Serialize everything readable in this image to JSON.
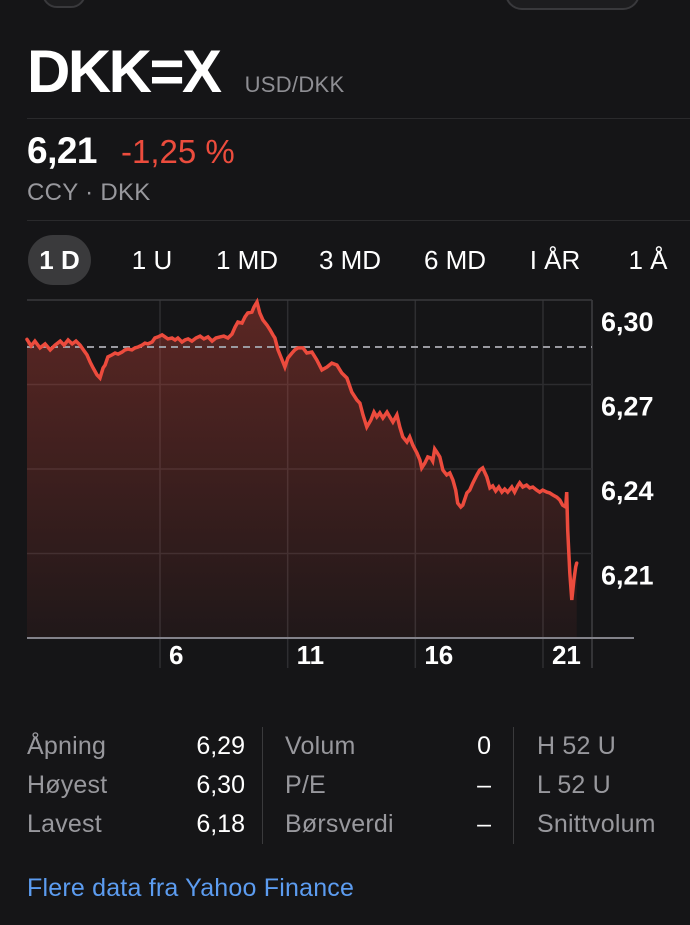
{
  "title": {
    "symbol": "DKK=X",
    "pair": "USD/DKK"
  },
  "quote": {
    "price": "6,21",
    "change_pct": "-1,25 %",
    "meta": "CCY · DKK"
  },
  "tabs": {
    "items": [
      {
        "label": "1 D",
        "selected": true
      },
      {
        "label": "1 U"
      },
      {
        "label": "1 MD"
      },
      {
        "label": "3 MD"
      },
      {
        "label": "6 MD"
      },
      {
        "label": "I ÅR"
      },
      {
        "label": "1 Å"
      }
    ]
  },
  "chart_data": {
    "type": "area",
    "title": "USD/DKK intraday (1 D)",
    "legend": "none",
    "grid": true,
    "x_ticks": [
      {
        "t": 6,
        "label": "6"
      },
      {
        "t": 11,
        "label": "11"
      },
      {
        "t": 16,
        "label": "16"
      },
      {
        "t": 21,
        "label": "21"
      }
    ],
    "y_ticks": [
      {
        "v": 6.3,
        "label": "6,30"
      },
      {
        "v": 6.27,
        "label": "6,27"
      },
      {
        "v": 6.24,
        "label": "6,24"
      },
      {
        "v": 6.21,
        "label": "6,21"
      }
    ],
    "y_axis_bottom": 6.18,
    "prev_close": 6.2833,
    "x_range_hours": [
      0.79,
      22.92
    ],
    "series": [
      {
        "name": "USD/DKK",
        "points": [
          [
            0.79,
            6.286
          ],
          [
            0.95,
            6.2837
          ],
          [
            1.1,
            6.2854
          ],
          [
            1.3,
            6.283
          ],
          [
            1.5,
            6.2844
          ],
          [
            1.7,
            6.2823
          ],
          [
            1.89,
            6.284
          ],
          [
            2.09,
            6.2854
          ],
          [
            2.24,
            6.284
          ],
          [
            2.4,
            6.2858
          ],
          [
            2.56,
            6.2844
          ],
          [
            2.71,
            6.2854
          ],
          [
            2.87,
            6.284
          ],
          [
            3.03,
            6.2819
          ],
          [
            3.14,
            6.2805
          ],
          [
            3.26,
            6.278
          ],
          [
            3.38,
            6.2759
          ],
          [
            3.53,
            6.2734
          ],
          [
            3.65,
            6.2723
          ],
          [
            3.77,
            6.2759
          ],
          [
            3.85,
            6.2769
          ],
          [
            3.96,
            6.2798
          ],
          [
            4.12,
            6.2805
          ],
          [
            4.24,
            6.2812
          ],
          [
            4.36,
            6.2808
          ],
          [
            4.51,
            6.2815
          ],
          [
            4.63,
            6.2823
          ],
          [
            4.75,
            6.2826
          ],
          [
            4.9,
            6.2823
          ],
          [
            5.02,
            6.283
          ],
          [
            5.14,
            6.2833
          ],
          [
            5.3,
            6.284
          ],
          [
            5.41,
            6.2847
          ],
          [
            5.53,
            6.2844
          ],
          [
            5.69,
            6.2851
          ],
          [
            5.8,
            6.2865
          ],
          [
            5.92,
            6.2869
          ],
          [
            6.08,
            6.2876
          ],
          [
            6.2,
            6.2869
          ],
          [
            6.31,
            6.2862
          ],
          [
            6.47,
            6.2865
          ],
          [
            6.59,
            6.2858
          ],
          [
            6.7,
            6.2865
          ],
          [
            6.86,
            6.2851
          ],
          [
            6.98,
            6.2858
          ],
          [
            7.1,
            6.2862
          ],
          [
            7.25,
            6.2854
          ],
          [
            7.41,
            6.2865
          ],
          [
            7.57,
            6.2872
          ],
          [
            7.72,
            6.2862
          ],
          [
            7.88,
            6.2869
          ],
          [
            8.04,
            6.2854
          ],
          [
            8.19,
            6.2865
          ],
          [
            8.35,
            6.2869
          ],
          [
            8.5,
            6.2872
          ],
          [
            8.66,
            6.2865
          ],
          [
            8.82,
            6.2879
          ],
          [
            8.94,
            6.2904
          ],
          [
            9.05,
            6.2922
          ],
          [
            9.21,
            6.2918
          ],
          [
            9.33,
            6.294
          ],
          [
            9.44,
            6.2954
          ],
          [
            9.6,
            6.2957
          ],
          [
            9.68,
            6.2975
          ],
          [
            9.8,
            6.2993
          ],
          [
            9.91,
            6.2954
          ],
          [
            10.03,
            6.2929
          ],
          [
            10.19,
            6.2911
          ],
          [
            10.31,
            6.2894
          ],
          [
            10.42,
            6.2876
          ],
          [
            10.5,
            6.2865
          ],
          [
            10.62,
            6.2823
          ],
          [
            10.78,
            6.2787
          ],
          [
            10.89,
            6.2762
          ],
          [
            11.01,
            6.2794
          ],
          [
            11.17,
            6.2812
          ],
          [
            11.28,
            6.2823
          ],
          [
            11.4,
            6.283
          ],
          [
            11.6,
            6.283
          ],
          [
            11.75,
            6.2812
          ],
          [
            11.95,
            6.2815
          ],
          [
            12.14,
            6.2787
          ],
          [
            12.34,
            6.2752
          ],
          [
            12.54,
            6.2762
          ],
          [
            12.73,
            6.2776
          ],
          [
            12.93,
            6.2769
          ],
          [
            13.12,
            6.2741
          ],
          [
            13.32,
            6.2723
          ],
          [
            13.51,
            6.2673
          ],
          [
            13.71,
            6.2645
          ],
          [
            13.83,
            6.2634
          ],
          [
            13.95,
            6.2592
          ],
          [
            14.1,
            6.2549
          ],
          [
            14.26,
            6.2574
          ],
          [
            14.38,
            6.2602
          ],
          [
            14.49,
            6.2585
          ],
          [
            14.61,
            6.2599
          ],
          [
            14.73,
            6.2581
          ],
          [
            14.89,
            6.2602
          ],
          [
            15.0,
            6.2585
          ],
          [
            15.12,
            6.2567
          ],
          [
            15.28,
            6.2592
          ],
          [
            15.39,
            6.2549
          ],
          [
            15.51,
            6.2514
          ],
          [
            15.67,
            6.2496
          ],
          [
            15.78,
            6.2514
          ],
          [
            15.9,
            6.2485
          ],
          [
            16.06,
            6.2457
          ],
          [
            16.18,
            6.2432
          ],
          [
            16.25,
            6.2404
          ],
          [
            16.37,
            6.2421
          ],
          [
            16.49,
            6.2443
          ],
          [
            16.61,
            6.2439
          ],
          [
            16.68,
            6.2428
          ],
          [
            16.76,
            6.2471
          ],
          [
            16.84,
            6.246
          ],
          [
            16.96,
            6.2443
          ],
          [
            17.08,
            6.2396
          ],
          [
            17.23,
            6.2379
          ],
          [
            17.35,
            6.2386
          ],
          [
            17.47,
            6.2361
          ],
          [
            17.58,
            6.2325
          ],
          [
            17.66,
            6.2279
          ],
          [
            17.78,
            6.2265
          ],
          [
            17.86,
            6.2272
          ],
          [
            18.02,
            6.2315
          ],
          [
            18.13,
            6.2325
          ],
          [
            18.25,
            6.235
          ],
          [
            18.41,
            6.2379
          ],
          [
            18.52,
            6.2396
          ],
          [
            18.64,
            6.2404
          ],
          [
            18.8,
            6.2372
          ],
          [
            18.92,
            6.2333
          ],
          [
            19.03,
            6.234
          ],
          [
            19.15,
            6.2322
          ],
          [
            19.27,
            6.2336
          ],
          [
            19.39,
            6.2318
          ],
          [
            19.5,
            6.2329
          ],
          [
            19.62,
            6.2318
          ],
          [
            19.78,
            6.2336
          ],
          [
            19.89,
            6.2318
          ],
          [
            20.01,
            6.234
          ],
          [
            20.09,
            6.2351
          ],
          [
            20.21,
            6.2336
          ],
          [
            20.36,
            6.2343
          ],
          [
            20.48,
            6.2333
          ],
          [
            20.6,
            6.2336
          ],
          [
            20.75,
            6.2325
          ],
          [
            20.87,
            6.2318
          ],
          [
            20.99,
            6.2325
          ],
          [
            21.15,
            6.2318
          ],
          [
            21.26,
            6.2315
          ],
          [
            21.38,
            6.2308
          ],
          [
            21.54,
            6.23
          ],
          [
            21.66,
            6.229
          ],
          [
            21.77,
            6.2272
          ],
          [
            21.89,
            6.2265
          ],
          [
            21.93,
            6.2318
          ],
          [
            21.97,
            6.2184
          ],
          [
            22.05,
            6.2031
          ],
          [
            22.13,
            6.1935
          ],
          [
            22.21,
            6.2006
          ],
          [
            22.28,
            6.2052
          ],
          [
            22.32,
            6.2066
          ]
        ]
      }
    ]
  },
  "stats": {
    "col1": [
      {
        "label": "Åpning",
        "value": "6,29"
      },
      {
        "label": "Høyest",
        "value": "6,30"
      },
      {
        "label": "Lavest",
        "value": "6,18"
      }
    ],
    "col2": [
      {
        "label": "Volum",
        "value": "0"
      },
      {
        "label": "P/E",
        "value": "–"
      },
      {
        "label": "Børsverdi",
        "value": "–"
      }
    ],
    "col3": [
      {
        "label": "H 52 U",
        "value": ""
      },
      {
        "label": "L 52 U",
        "value": ""
      },
      {
        "label": "Snittvolum",
        "value": ""
      }
    ]
  },
  "footer": {
    "link_label": "Flere data fra Yahoo Finance"
  },
  "colors": {
    "background": "#151517",
    "chart_line": "#ec4b3d",
    "change_red": "#ec4c3d",
    "link_blue": "#5c9cf0",
    "muted_gray": "#98989d",
    "selected_pill": "#3a3a3c"
  }
}
